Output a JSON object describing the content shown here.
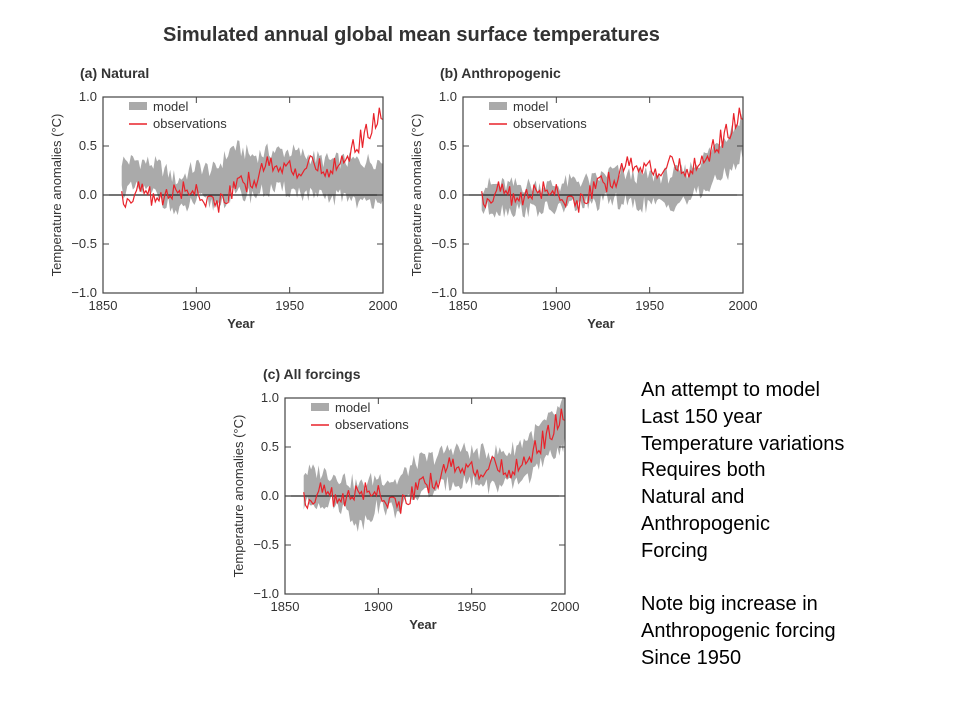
{
  "title": "Simulated annual global mean surface temperatures",
  "colors": {
    "model": "#aaaaaa",
    "observations": "#e8222a",
    "axis": "#444444"
  },
  "notes": {
    "lines_a": [
      "An attempt to model",
      "Last 150 year",
      "Temperature variations",
      "Requires both",
      "Natural and",
      "Anthropogenic",
      "Forcing"
    ],
    "lines_b": [
      "Note big increase in",
      "Anthropogenic forcing",
      "Since 1950"
    ]
  },
  "chart_data": [
    {
      "type": "area",
      "title": "(a) Natural",
      "xlabel": "Year",
      "ylabel": "Temperature anomalies (°C)",
      "xlim": [
        1850,
        2000
      ],
      "ylim": [
        -1.0,
        1.0
      ],
      "xticks": [
        "1850",
        "1900",
        "1950",
        "2000"
      ],
      "yticks": [
        "1.0",
        "0.5",
        "0.0",
        "−0.5",
        "−1.0"
      ],
      "legend": [
        "model",
        "observations"
      ],
      "legend_position": "top-left",
      "x": [
        1860,
        1870,
        1880,
        1890,
        1900,
        1910,
        1920,
        1930,
        1940,
        1950,
        1960,
        1970,
        1980,
        1990,
        2000
      ],
      "series": [
        {
          "name": "model",
          "kind": "band",
          "lower": [
            0.05,
            0.05,
            0.0,
            -0.2,
            -0.05,
            -0.1,
            0.0,
            0.0,
            0.05,
            0.05,
            0.0,
            -0.05,
            0.0,
            -0.1,
            0.0
          ],
          "upper": [
            0.35,
            0.35,
            0.3,
            0.15,
            0.3,
            0.25,
            0.5,
            0.4,
            0.45,
            0.45,
            0.4,
            0.35,
            0.35,
            0.35,
            0.35
          ]
        },
        {
          "name": "observations",
          "kind": "line",
          "values": [
            -0.05,
            0.05,
            -0.05,
            0.05,
            0.05,
            -0.1,
            0.05,
            0.15,
            0.35,
            0.25,
            0.3,
            0.25,
            0.4,
            0.6,
            0.85
          ]
        }
      ]
    },
    {
      "type": "area",
      "title": "(b) Anthropogenic",
      "xlabel": "Year",
      "ylabel": "Temperature anomalies (°C)",
      "xlim": [
        1850,
        2000
      ],
      "ylim": [
        -1.0,
        1.0
      ],
      "xticks": [
        "1850",
        "1900",
        "1950",
        "2000"
      ],
      "yticks": [
        "1.0",
        "0.5",
        "0.0",
        "−0.5",
        "−1.0"
      ],
      "legend": [
        "model",
        "observations"
      ],
      "legend_position": "top-left",
      "x": [
        1860,
        1870,
        1880,
        1890,
        1900,
        1910,
        1920,
        1930,
        1940,
        1950,
        1960,
        1970,
        1980,
        1990,
        2000
      ],
      "series": [
        {
          "name": "model",
          "kind": "band",
          "lower": [
            -0.15,
            -0.15,
            -0.15,
            -0.15,
            -0.15,
            -0.1,
            -0.1,
            -0.05,
            -0.1,
            -0.1,
            -0.1,
            -0.05,
            0.05,
            0.2,
            0.4
          ],
          "upper": [
            0.1,
            0.1,
            0.1,
            0.1,
            0.1,
            0.15,
            0.15,
            0.25,
            0.2,
            0.2,
            0.2,
            0.25,
            0.4,
            0.6,
            0.8
          ]
        },
        {
          "name": "observations",
          "kind": "line",
          "values": [
            -0.05,
            0.05,
            -0.05,
            0.05,
            0.05,
            -0.1,
            0.05,
            0.15,
            0.35,
            0.25,
            0.3,
            0.25,
            0.4,
            0.6,
            0.85
          ]
        }
      ]
    },
    {
      "type": "area",
      "title": "(c) All forcings",
      "xlabel": "Year",
      "ylabel": "Temperature anomalies (°C)",
      "xlim": [
        1850,
        2000
      ],
      "ylim": [
        -1.0,
        1.0
      ],
      "xticks": [
        "1850",
        "1900",
        "1950",
        "2000"
      ],
      "yticks": [
        "1.0",
        "0.5",
        "0.0",
        "−0.5",
        "−1.0"
      ],
      "legend": [
        "model",
        "observations"
      ],
      "legend_position": "top-left",
      "x": [
        1860,
        1870,
        1880,
        1890,
        1900,
        1910,
        1920,
        1930,
        1940,
        1950,
        1960,
        1970,
        1980,
        1990,
        2000
      ],
      "series": [
        {
          "name": "model",
          "kind": "band",
          "lower": [
            -0.1,
            -0.05,
            -0.1,
            -0.3,
            -0.1,
            -0.15,
            0.0,
            0.05,
            0.15,
            0.15,
            0.1,
            0.1,
            0.2,
            0.35,
            0.55
          ],
          "upper": [
            0.25,
            0.25,
            0.2,
            0.1,
            0.2,
            0.15,
            0.35,
            0.4,
            0.5,
            0.45,
            0.45,
            0.45,
            0.6,
            0.75,
            0.95
          ]
        },
        {
          "name": "observations",
          "kind": "line",
          "values": [
            -0.05,
            0.05,
            -0.05,
            0.05,
            0.05,
            -0.1,
            0.05,
            0.15,
            0.35,
            0.25,
            0.3,
            0.25,
            0.4,
            0.6,
            0.85
          ]
        }
      ]
    }
  ]
}
